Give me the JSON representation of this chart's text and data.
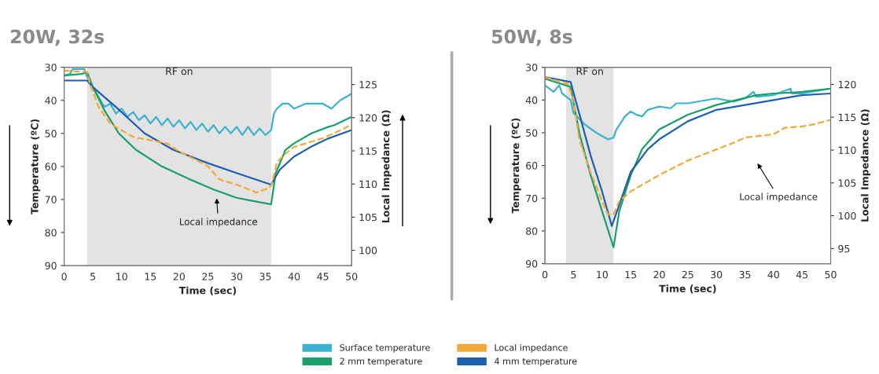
{
  "chart_data": [
    {
      "type": "line",
      "title": "20W, 32s",
      "xlabel": "Time (sec)",
      "ylabel": "Temperature (ºC)",
      "y2label": "Local Impedance (Ω)",
      "xlim": [
        0,
        50
      ],
      "xticks": [
        0,
        5,
        10,
        15,
        20,
        25,
        30,
        35,
        40,
        45,
        50
      ],
      "ylim": [
        90,
        30
      ],
      "yticks": [
        30,
        40,
        50,
        60,
        70,
        80,
        90
      ],
      "y2lim": [
        97.7,
        127.6
      ],
      "y2ticks": [
        100,
        105,
        110,
        115,
        120,
        125
      ],
      "grid": false,
      "legend": "bottom",
      "bands": [
        {
          "axis": "x",
          "from": 4,
          "to": 36,
          "label": "RF on",
          "color": "#e3e3e3"
        }
      ],
      "annotations": [
        "Local impedance"
      ],
      "series": [
        {
          "name": "Surface temperature",
          "color": "#3bb3d0",
          "x": [
            0,
            1,
            1.5,
            3.5,
            4,
            5,
            6,
            7,
            8,
            9,
            10,
            11,
            12,
            13,
            14,
            15,
            16,
            17,
            18,
            19,
            20,
            21,
            22,
            23,
            24,
            25,
            26,
            27,
            28,
            29,
            30,
            31,
            32,
            33,
            34,
            35,
            36,
            36.5,
            37,
            38,
            39,
            40,
            42,
            45,
            46.5,
            48,
            50
          ],
          "values": [
            32.5,
            32,
            30.5,
            30.5,
            33,
            36,
            39,
            42,
            41,
            44,
            42.5,
            45,
            43.5,
            46,
            44.5,
            47,
            45,
            47.5,
            45.5,
            48,
            46,
            48.5,
            46.5,
            49,
            47,
            49.5,
            47.5,
            50,
            48,
            50,
            48,
            50.5,
            48,
            50.5,
            48.5,
            50.5,
            49,
            44,
            42.5,
            41,
            41,
            42.5,
            41,
            41,
            42.5,
            40,
            38
          ]
        },
        {
          "name": "Local impedance",
          "color": "#f5a83a",
          "axis": "y2",
          "line_style": "dashed",
          "x": [
            0,
            4,
            4.5,
            6,
            8,
            10,
            12,
            15,
            18,
            20,
            25,
            27,
            30,
            33.5,
            35,
            36,
            37,
            38,
            40,
            45,
            50
          ],
          "values": [
            127.1,
            126.9,
            125.1,
            121.6,
            119.1,
            118.1,
            117.1,
            116.6,
            116.1,
            114.9,
            112.7,
            110.7,
            109.9,
            108.7,
            109.2,
            109.7,
            113.2,
            114.2,
            115.6,
            116.9,
            118.9
          ]
        },
        {
          "name": "2 mm temperature",
          "color": "#1a9e6a",
          "x": [
            0,
            3,
            4,
            5,
            7,
            9.5,
            12.5,
            17,
            22,
            26,
            30,
            36,
            36.8,
            38.5,
            40,
            43,
            46,
            47,
            50
          ],
          "values": [
            32.5,
            32,
            31.5,
            36,
            43,
            50,
            55,
            60,
            64,
            67,
            69.5,
            71.5,
            62,
            55,
            53,
            50,
            48,
            47.5,
            45
          ]
        },
        {
          "name": "4 mm temperature",
          "color": "#1f5fb0",
          "x": [
            0,
            4,
            5,
            9,
            14,
            19,
            25,
            30,
            36,
            37.5,
            40,
            43,
            46,
            50
          ],
          "values": [
            34,
            34,
            36,
            42,
            50,
            55,
            59,
            62,
            65.5,
            61,
            57,
            54,
            51.5,
            49
          ]
        }
      ]
    },
    {
      "type": "line",
      "title": "50W, 8s",
      "xlabel": "Time (sec)",
      "ylabel": "Temperature (ºC)",
      "y2label": "Local Impedance (Ω)",
      "xlim": [
        0,
        50
      ],
      "xticks": [
        0,
        5,
        10,
        15,
        20,
        25,
        30,
        35,
        40,
        45,
        50
      ],
      "ylim": [
        90,
        30
      ],
      "yticks": [
        30,
        40,
        50,
        60,
        70,
        80,
        90
      ],
      "y2lim": [
        92.7,
        122.6
      ],
      "y2ticks": [
        95,
        100,
        105,
        110,
        115,
        120
      ],
      "grid": false,
      "bands": [
        {
          "axis": "x",
          "from": 3.7,
          "to": 12,
          "label": "RF on",
          "color": "#e3e3e3"
        }
      ],
      "annotations": [
        "Local impedance"
      ],
      "series": [
        {
          "color": "#3bb3d0",
          "x": [
            0,
            1.5,
            2.5,
            3,
            4.5,
            5,
            7,
            9,
            11,
            12,
            12.5,
            14,
            15,
            16,
            17,
            18,
            19,
            20,
            22,
            23,
            25,
            30,
            33,
            35,
            36.5,
            37,
            40,
            43,
            43.2,
            45,
            50
          ],
          "values": [
            35.5,
            37.5,
            35.5,
            38,
            40,
            44,
            47.5,
            50,
            52,
            51.5,
            49,
            45,
            43.5,
            44.5,
            45,
            43,
            42.5,
            42,
            42.5,
            41,
            41,
            39.5,
            40.5,
            39.5,
            37.5,
            39,
            38.5,
            36.5,
            38,
            38,
            36.5
          ]
        },
        {
          "color": "#f5a83a",
          "axis": "y2",
          "line_style": "dashed",
          "x": [
            0,
            4,
            5,
            6,
            8,
            10,
            11,
            12,
            13,
            15,
            18,
            20,
            25,
            30,
            33,
            35,
            40,
            42,
            45,
            47,
            50
          ],
          "values": [
            121.1,
            120.1,
            117.6,
            111.6,
            106.6,
            102.2,
            100.2,
            100.2,
            102.2,
            103.7,
            105.2,
            106.2,
            108.4,
            110.1,
            111.1,
            111.9,
            112.4,
            113.4,
            113.6,
            113.9,
            114.6
          ]
        },
        {
          "color": "#1a9e6a",
          "x": [
            0,
            4.5,
            6,
            8,
            10,
            12,
            13,
            15,
            17,
            20,
            25,
            30,
            37,
            40,
            45,
            50
          ],
          "values": [
            33.5,
            36,
            50,
            63,
            74,
            85,
            74,
            63,
            55,
            49,
            44.5,
            41.5,
            38.5,
            38,
            37.5,
            36.5
          ]
        },
        {
          "color": "#1f5fb0",
          "x": [
            0,
            4.5,
            8,
            10,
            11.7,
            13,
            15,
            18,
            20,
            25,
            30,
            35,
            40,
            45,
            50
          ],
          "values": [
            33,
            34.5,
            57,
            68,
            78.5,
            72,
            62,
            55,
            52,
            46.5,
            43,
            41.5,
            40,
            38.5,
            38
          ]
        }
      ]
    }
  ]
}
